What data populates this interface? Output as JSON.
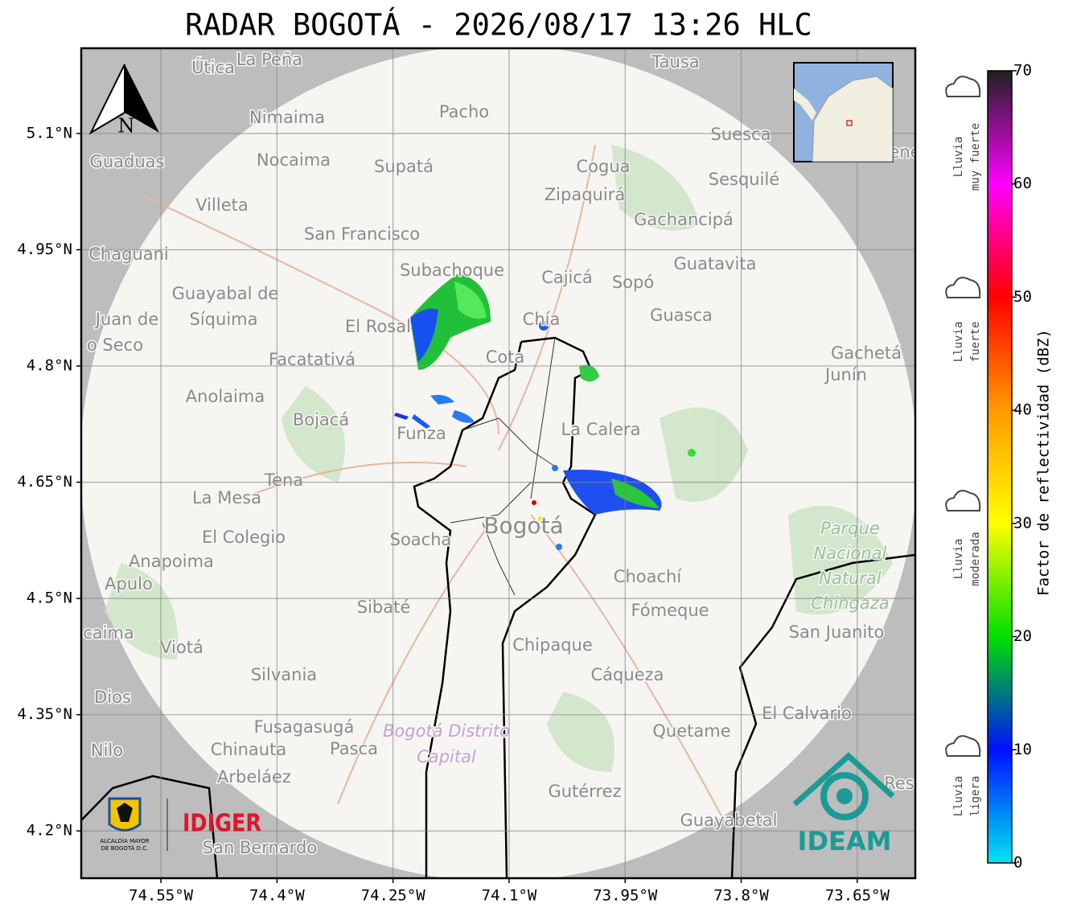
{
  "title": "RADAR BOGOTÁ - 2026/08/17 13:26 HLC",
  "map": {
    "xlim": [
      -74.653,
      -73.575
    ],
    "ylim": [
      4.139,
      5.21
    ],
    "xticks": [
      {
        "value": -74.55,
        "label": "74.55°W"
      },
      {
        "value": -74.4,
        "label": "74.4°W"
      },
      {
        "value": -74.25,
        "label": "74.25°W"
      },
      {
        "value": -74.1,
        "label": "74.1°W"
      },
      {
        "value": -73.95,
        "label": "73.95°W"
      },
      {
        "value": -73.8,
        "label": "73.8°W"
      },
      {
        "value": -73.65,
        "label": "73.65°W"
      }
    ],
    "yticks": [
      {
        "value": 5.1,
        "label": "5.1°N"
      },
      {
        "value": 4.95,
        "label": "4.95°N"
      },
      {
        "value": 4.8,
        "label": "4.8°N"
      },
      {
        "value": 4.65,
        "label": "4.65°N"
      },
      {
        "value": 4.5,
        "label": "4.5°N"
      },
      {
        "value": 4.35,
        "label": "4.35°N"
      },
      {
        "value": 4.2,
        "label": "4.2°N"
      }
    ],
    "north": "N",
    "places": [
      "Útica",
      "La Peña",
      "Tausa",
      "Pacho",
      "Nimaima",
      "Suesca",
      "Guaduas",
      "Nocaima",
      "Supatá",
      "Cogua",
      "Sesquilé",
      "Zipaquirá",
      "Villeta",
      "Gachancipá",
      "San Francisco",
      "Chaguani",
      "Guatavita",
      "Subachoque",
      "Cajicá",
      "Sopó",
      "Guayabal de",
      "Síquima",
      "Juan de",
      "o Seco",
      "Guasca",
      "El Rosal",
      "Chía",
      "Gachetá",
      "Junín",
      "Facatativá",
      "Cota",
      "Anolaima",
      "Bojacá",
      "La Calera",
      "Funza",
      "Tena",
      "La Mesa",
      "El Colegio",
      "Soacha",
      "Anapoima",
      "Apulo",
      "Choachí",
      "Sibaté",
      "Fómeque",
      "San Juanito",
      "caima",
      "Viotá",
      "Chipaque",
      "Silvania",
      "Cáqueza",
      "Dios",
      "El Calvario",
      "Fusagasugá",
      "Quetame",
      "Nilo",
      "Chinauta",
      "Pasca",
      "Arbeláez",
      "Res",
      "Gutérrez",
      "Guayabetal",
      "San Bernardo",
      "ene"
    ],
    "big_place": "Bogotá",
    "park": [
      "Parque",
      "Nacional",
      "Natural",
      "Chingaza"
    ],
    "district": [
      "Bogotá Distrito",
      "Capital"
    ]
  },
  "colorbar": {
    "label": "Factor de reflectividad (dBZ)",
    "lim": [
      0,
      70
    ],
    "ticks": [
      0,
      10,
      20,
      30,
      40,
      50,
      60,
      70
    ],
    "colors": [
      "#00e5f0",
      "#0010ff",
      "#00e000",
      "#ffff00",
      "#ff9a00",
      "#ff0000",
      "#ff00ff",
      "#202020"
    ]
  },
  "rain_levels": [
    [
      "Lluvia",
      "muy fuerte"
    ],
    [
      "Lluvia",
      "fuerte"
    ],
    [
      "Lluvia",
      "moderada"
    ],
    [
      "Lluvia",
      "ligera"
    ]
  ],
  "logos": {
    "idiger": "IDIGER",
    "ideam": "IDEAM",
    "alcaldia": [
      "ALCALDÍA MAYOR",
      "DE BOGOTÁ D.C."
    ]
  }
}
